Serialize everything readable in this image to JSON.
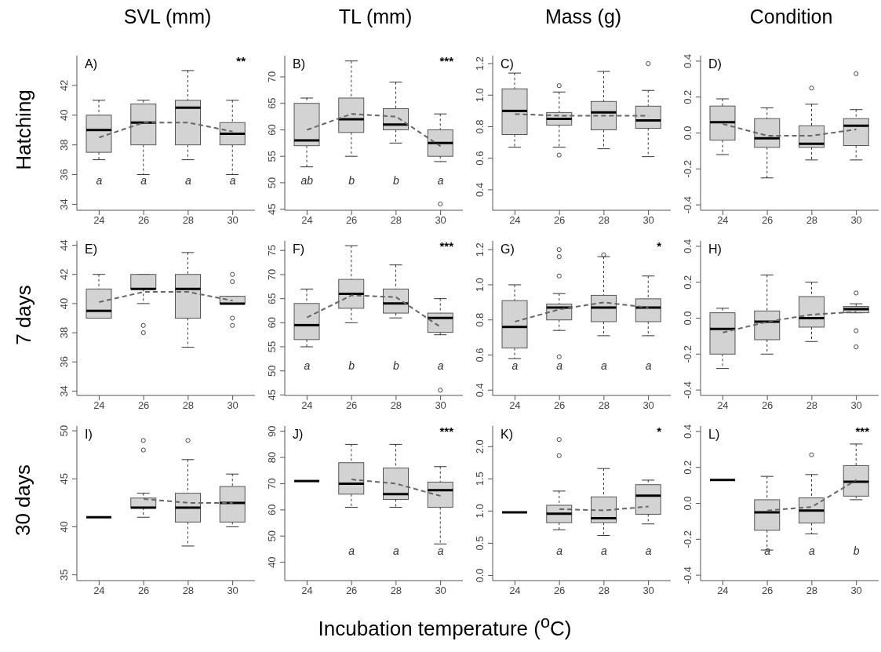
{
  "chart_data": [
    {
      "type": "box",
      "title": "SVL (mm)",
      "ylabel": "Hatching",
      "categories": [
        "24",
        "26",
        "28",
        "30"
      ],
      "color": "#d3d3d3",
      "ylim": [
        33.6,
        44
      ],
      "yticks": [
        34,
        36,
        38,
        40,
        42
      ],
      "boxes": [
        {
          "low": 37,
          "q1": 37.5,
          "median": 39,
          "q3": 40,
          "high": 41
        },
        {
          "low": 36,
          "q1": 38,
          "median": 39.5,
          "q3": 40.75,
          "high": 41
        },
        {
          "low": 37,
          "q1": 38,
          "median": 40.5,
          "q3": 41,
          "high": 43
        },
        {
          "low": 36,
          "q1": 38,
          "median": 38.75,
          "q3": 39.5,
          "high": 41
        }
      ],
      "series": [
        {
          "type": "line",
          "line_style": "dashed",
          "color": "#666666",
          "values": [
            38.5,
            39.5,
            39.5,
            38.9
          ]
        }
      ],
      "annotations": [
        "A)",
        "**",
        "a",
        "a",
        "a",
        "a"
      ]
    },
    {
      "type": "box",
      "title": "TL (mm)",
      "categories": [
        "24",
        "26",
        "28",
        "30"
      ],
      "color": "#d3d3d3",
      "ylim": [
        44.8,
        74
      ],
      "yticks": [
        45,
        50,
        55,
        60,
        65,
        70
      ],
      "boxes": [
        {
          "low": 53,
          "q1": 57,
          "median": 58,
          "q3": 65,
          "high": 66
        },
        {
          "low": 55,
          "q1": 59.5,
          "median": 62,
          "q3": 66,
          "high": 73
        },
        {
          "low": 57.5,
          "q1": 60,
          "median": 61,
          "q3": 64,
          "high": 69
        },
        {
          "low": 54,
          "q1": 55,
          "median": 57.5,
          "q3": 60,
          "high": 63,
          "outliers": [
            46
          ]
        }
      ],
      "series": [
        {
          "type": "line",
          "line_style": "dashed",
          "color": "#666666",
          "values": [
            60,
            63,
            62.5,
            56.9
          ]
        }
      ],
      "annotations": [
        "B)",
        "***",
        "ab",
        "b",
        "b",
        "a"
      ]
    },
    {
      "type": "box",
      "title": "Mass (g)",
      "categories": [
        "24",
        "26",
        "28",
        "30"
      ],
      "color": "#d3d3d3",
      "ylim": [
        0.27,
        1.25
      ],
      "yticks": [
        0.4,
        0.6,
        0.8,
        {
          "value": 1,
          "label": "1.0"
        },
        1.2
      ],
      "boxes": [
        {
          "low": 0.67,
          "q1": 0.75,
          "median": 0.9,
          "q3": 1.04,
          "high": 1.14
        },
        {
          "low": 0.67,
          "q1": 0.81,
          "median": 0.85,
          "q3": 0.89,
          "high": 1.02,
          "outliers": [
            1.06,
            0.62
          ]
        },
        {
          "low": 0.66,
          "q1": 0.78,
          "median": 0.89,
          "q3": 0.96,
          "high": 1.15
        },
        {
          "low": 0.61,
          "q1": 0.79,
          "median": 0.84,
          "q3": 0.93,
          "high": 1.03,
          "outliers": [
            1.2
          ]
        }
      ],
      "series": [
        {
          "type": "line",
          "line_style": "dashed",
          "color": "#666666",
          "values": [
            0.88,
            0.87,
            0.87,
            0.87
          ]
        }
      ],
      "annotations": [
        "C)"
      ]
    },
    {
      "type": "box",
      "title": "Condition",
      "categories": [
        "24",
        "26",
        "28",
        "30"
      ],
      "color": "#d3d3d3",
      "ylim": [
        -0.43,
        0.43
      ],
      "yticks": [
        -0.4,
        -0.2,
        {
          "value": 0,
          "label": "0.0"
        },
        0.2,
        0.4
      ],
      "boxes": [
        {
          "low": -0.12,
          "q1": -0.04,
          "median": 0.06,
          "q3": 0.15,
          "high": 0.19
        },
        {
          "low": -0.25,
          "q1": -0.08,
          "median": -0.03,
          "q3": 0.08,
          "high": 0.14
        },
        {
          "low": -0.15,
          "q1": -0.08,
          "median": -0.06,
          "q3": 0.04,
          "high": 0.16,
          "outliers": [
            0.25
          ]
        },
        {
          "low": -0.15,
          "q1": -0.07,
          "median": 0.04,
          "q3": 0.08,
          "high": 0.13,
          "outliers": [
            0.33
          ]
        }
      ],
      "series": [
        {
          "type": "line",
          "line_style": "dashed",
          "color": "#666666",
          "values": [
            0.05,
            -0.015,
            -0.015,
            0.02
          ]
        }
      ],
      "annotations": [
        "D)"
      ]
    },
    {
      "type": "box",
      "ylabel": "7 days",
      "categories": [
        "24",
        "26",
        "28",
        "30"
      ],
      "color": "#d3d3d3",
      "ylim": [
        33.7,
        44.3
      ],
      "yticks": [
        34,
        36,
        38,
        40,
        42,
        44
      ],
      "boxes": [
        {
          "low": 39,
          "q1": 39,
          "median": 39.5,
          "q3": 41,
          "high": 42
        },
        {
          "low": 40,
          "q1": 41,
          "median": 41,
          "q3": 42,
          "high": 42,
          "outliers": [
            38.5,
            38
          ]
        },
        {
          "low": 37,
          "q1": 39,
          "median": 41,
          "q3": 42,
          "high": 43.5
        },
        {
          "low": 40,
          "q1": 40,
          "median": 40,
          "q3": 40.5,
          "high": 40.5,
          "outliers": [
            42,
            41.5,
            39,
            38.5
          ]
        }
      ],
      "series": [
        {
          "type": "line",
          "line_style": "dashed",
          "color": "#666666",
          "values": [
            40.1,
            40.8,
            40.8,
            40.2
          ]
        }
      ],
      "annotations": [
        "E)"
      ]
    },
    {
      "type": "box",
      "categories": [
        "24",
        "26",
        "28",
        "30"
      ],
      "color": "#d3d3d3",
      "ylim": [
        44.9,
        77
      ],
      "yticks": [
        45,
        50,
        55,
        60,
        65,
        70,
        75
      ],
      "boxes": [
        {
          "low": 55,
          "q1": 56.5,
          "median": 59.5,
          "q3": 64,
          "high": 67
        },
        {
          "low": 60,
          "q1": 63,
          "median": 66,
          "q3": 69,
          "high": 76
        },
        {
          "low": 61,
          "q1": 62,
          "median": 64,
          "q3": 67,
          "high": 72
        },
        {
          "low": 57.5,
          "q1": 58,
          "median": 61,
          "q3": 62,
          "high": 65,
          "outliers": [
            46
          ]
        }
      ],
      "series": [
        {
          "type": "line",
          "line_style": "dashed",
          "color": "#666666",
          "values": [
            61.1,
            65.7,
            65.3,
            59.1
          ]
        }
      ],
      "annotations": [
        "F)",
        "***",
        "a",
        "b",
        "b",
        "a"
      ]
    },
    {
      "type": "box",
      "categories": [
        "24",
        "26",
        "28",
        "30"
      ],
      "color": "#d3d3d3",
      "ylim": [
        0.37,
        1.25
      ],
      "yticks": [
        0.4,
        0.6,
        0.8,
        {
          "value": 1,
          "label": "1.0"
        },
        1.2
      ],
      "boxes": [
        {
          "low": 0.58,
          "q1": 0.64,
          "median": 0.76,
          "q3": 0.91,
          "high": 1
        },
        {
          "low": 0.74,
          "q1": 0.8,
          "median": 0.87,
          "q3": 0.89,
          "high": 0.95,
          "outliers": [
            1.2,
            1.16,
            1.05,
            0.59
          ]
        },
        {
          "low": 0.71,
          "q1": 0.79,
          "median": 0.87,
          "q3": 0.94,
          "high": 1.16,
          "outliers": [
            1.17
          ]
        },
        {
          "low": 0.71,
          "q1": 0.79,
          "median": 0.87,
          "q3": 0.92,
          "high": 1.05
        }
      ],
      "series": [
        {
          "type": "line",
          "line_style": "dashed",
          "color": "#666666",
          "values": [
            0.79,
            0.86,
            0.9,
            0.87
          ]
        }
      ],
      "annotations": [
        "G)",
        "*",
        "a",
        "a",
        "a",
        "a"
      ]
    },
    {
      "type": "box",
      "categories": [
        "24",
        "26",
        "28",
        "30"
      ],
      "color": "#d3d3d3",
      "ylim": [
        -0.43,
        0.43
      ],
      "yticks": [
        -0.4,
        -0.2,
        {
          "value": 0,
          "label": "0.0"
        },
        0.2,
        0.4
      ],
      "boxes": [
        {
          "low": -0.28,
          "q1": -0.2,
          "median": -0.06,
          "q3": 0.03,
          "high": 0.055
        },
        {
          "low": -0.2,
          "q1": -0.12,
          "median": -0.02,
          "q3": 0.04,
          "high": 0.24
        },
        {
          "low": -0.13,
          "q1": -0.05,
          "median": 0,
          "q3": 0.12,
          "high": 0.2
        },
        {
          "low": 0.03,
          "q1": 0.03,
          "median": 0.05,
          "q3": 0.065,
          "high": 0.08,
          "outliers": [
            0.14,
            -0.07,
            -0.16
          ]
        }
      ],
      "series": [
        {
          "type": "line",
          "line_style": "dashed",
          "color": "#666666",
          "values": [
            -0.08,
            -0.02,
            0.02,
            0.035
          ]
        }
      ],
      "annotations": [
        "H)"
      ]
    },
    {
      "type": "box",
      "ylabel": "30 days",
      "xlabel": "Incubation temperature ($^{o}$C)",
      "categories": [
        "24",
        "26",
        "28",
        "30"
      ],
      "colors": [
        "#000000",
        "#d3d3d3",
        "#d3d3d3",
        "#d3d3d3"
      ],
      "ylim": [
        34.4,
        50.5
      ],
      "yticks": [
        35,
        40,
        45,
        50
      ],
      "boxes": [
        {
          "low": 41,
          "q1": 41,
          "median": 41,
          "q3": 41,
          "high": 41
        },
        {
          "low": 41,
          "q1": 42,
          "median": 42,
          "q3": 43,
          "high": 43.5,
          "outliers": [
            49,
            48
          ]
        },
        {
          "low": 38,
          "q1": 40.5,
          "median": 42,
          "q3": 43.5,
          "high": 47,
          "outliers": [
            49
          ]
        },
        {
          "low": 40,
          "q1": 40.5,
          "median": 42.5,
          "q3": 44.2,
          "high": 45.5
        }
      ],
      "series": [
        {
          "type": "line",
          "line_style": "dashed",
          "color": "#666666",
          "values": [
            null,
            42.9,
            42.5,
            42.5
          ]
        }
      ],
      "annotations": [
        "I)"
      ]
    },
    {
      "type": "box",
      "categories": [
        "24",
        "26",
        "28",
        "30"
      ],
      "colors": [
        "#000000",
        "#d3d3d3",
        "#d3d3d3",
        "#d3d3d3"
      ],
      "ylim": [
        33,
        92
      ],
      "yticks": [
        40,
        50,
        60,
        70,
        80,
        90
      ],
      "boxes": [
        {
          "low": 71,
          "q1": 71,
          "median": 71,
          "q3": 71,
          "high": 71
        },
        {
          "low": 61,
          "q1": 66,
          "median": 70,
          "q3": 78,
          "high": 85
        },
        {
          "low": 61,
          "q1": 64,
          "median": 66,
          "q3": 76,
          "high": 85
        },
        {
          "low": 47,
          "q1": 61,
          "median": 67.5,
          "q3": 70.6,
          "high": 76.5
        }
      ],
      "series": [
        {
          "type": "line",
          "line_style": "dashed",
          "color": "#666666",
          "values": [
            null,
            71.6,
            70,
            65.3
          ]
        }
      ],
      "annotations": [
        "J)",
        "***",
        "a",
        "a",
        "a"
      ]
    },
    {
      "type": "box",
      "categories": [
        "24",
        "26",
        "28",
        "30"
      ],
      "colors": [
        "#000000",
        "#d3d3d3",
        "#d3d3d3",
        "#d3d3d3"
      ],
      "ylim": [
        -0.08,
        2.32
      ],
      "yticks": [
        {
          "value": 0,
          "label": "0.0"
        },
        0.5,
        {
          "value": 1,
          "label": "1.0"
        },
        1.5,
        {
          "value": 2,
          "label": "2.0"
        }
      ],
      "boxes": [
        {
          "low": 0.98,
          "q1": 0.98,
          "median": 0.98,
          "q3": 0.98,
          "high": 0.98
        },
        {
          "low": 0.71,
          "q1": 0.82,
          "median": 0.96,
          "q3": 1.09,
          "high": 1.31,
          "outliers": [
            2.11,
            1.86
          ]
        },
        {
          "low": 0.62,
          "q1": 0.82,
          "median": 0.89,
          "q3": 1.22,
          "high": 1.66
        },
        {
          "low": 0.8,
          "q1": 0.95,
          "median": 1.24,
          "q3": 1.41,
          "high": 1.48
        }
      ],
      "series": [
        {
          "type": "line",
          "line_style": "dashed",
          "color": "#666666",
          "values": [
            null,
            1.03,
            1.01,
            1.07
          ]
        }
      ],
      "annotations": [
        "K)",
        "*",
        "a",
        "a",
        "a"
      ]
    },
    {
      "type": "box",
      "categories": [
        "24",
        "26",
        "28",
        "30"
      ],
      "ylim": [
        -0.43,
        0.43
      ],
      "yticks": [
        -0.4,
        -0.2,
        {
          "value": 0,
          "label": "0.0"
        },
        0.2,
        0.4
      ],
      "colors": [
        "#000000",
        "#d3d3d3",
        "#d3d3d3",
        "#d3d3d3"
      ],
      "boxes": [
        {
          "low": 0.13,
          "q1": 0.13,
          "median": 0.13,
          "q3": 0.13,
          "high": 0.13
        },
        {
          "low": -0.26,
          "q1": -0.15,
          "median": -0.05,
          "q3": 0.02,
          "high": 0.15
        },
        {
          "low": -0.17,
          "q1": -0.11,
          "median": -0.04,
          "q3": 0.03,
          "high": 0.16,
          "outliers": [
            0.27
          ]
        },
        {
          "low": 0.02,
          "q1": 0.04,
          "median": 0.12,
          "q3": 0.21,
          "high": 0.33
        }
      ],
      "series": [
        {
          "type": "line",
          "line_style": "dashed",
          "color": "#666666",
          "values": [
            null,
            -0.04,
            -0.02,
            0.13
          ]
        }
      ],
      "annotations": [
        "L)",
        "***",
        "a",
        "a",
        "b"
      ]
    }
  ]
}
